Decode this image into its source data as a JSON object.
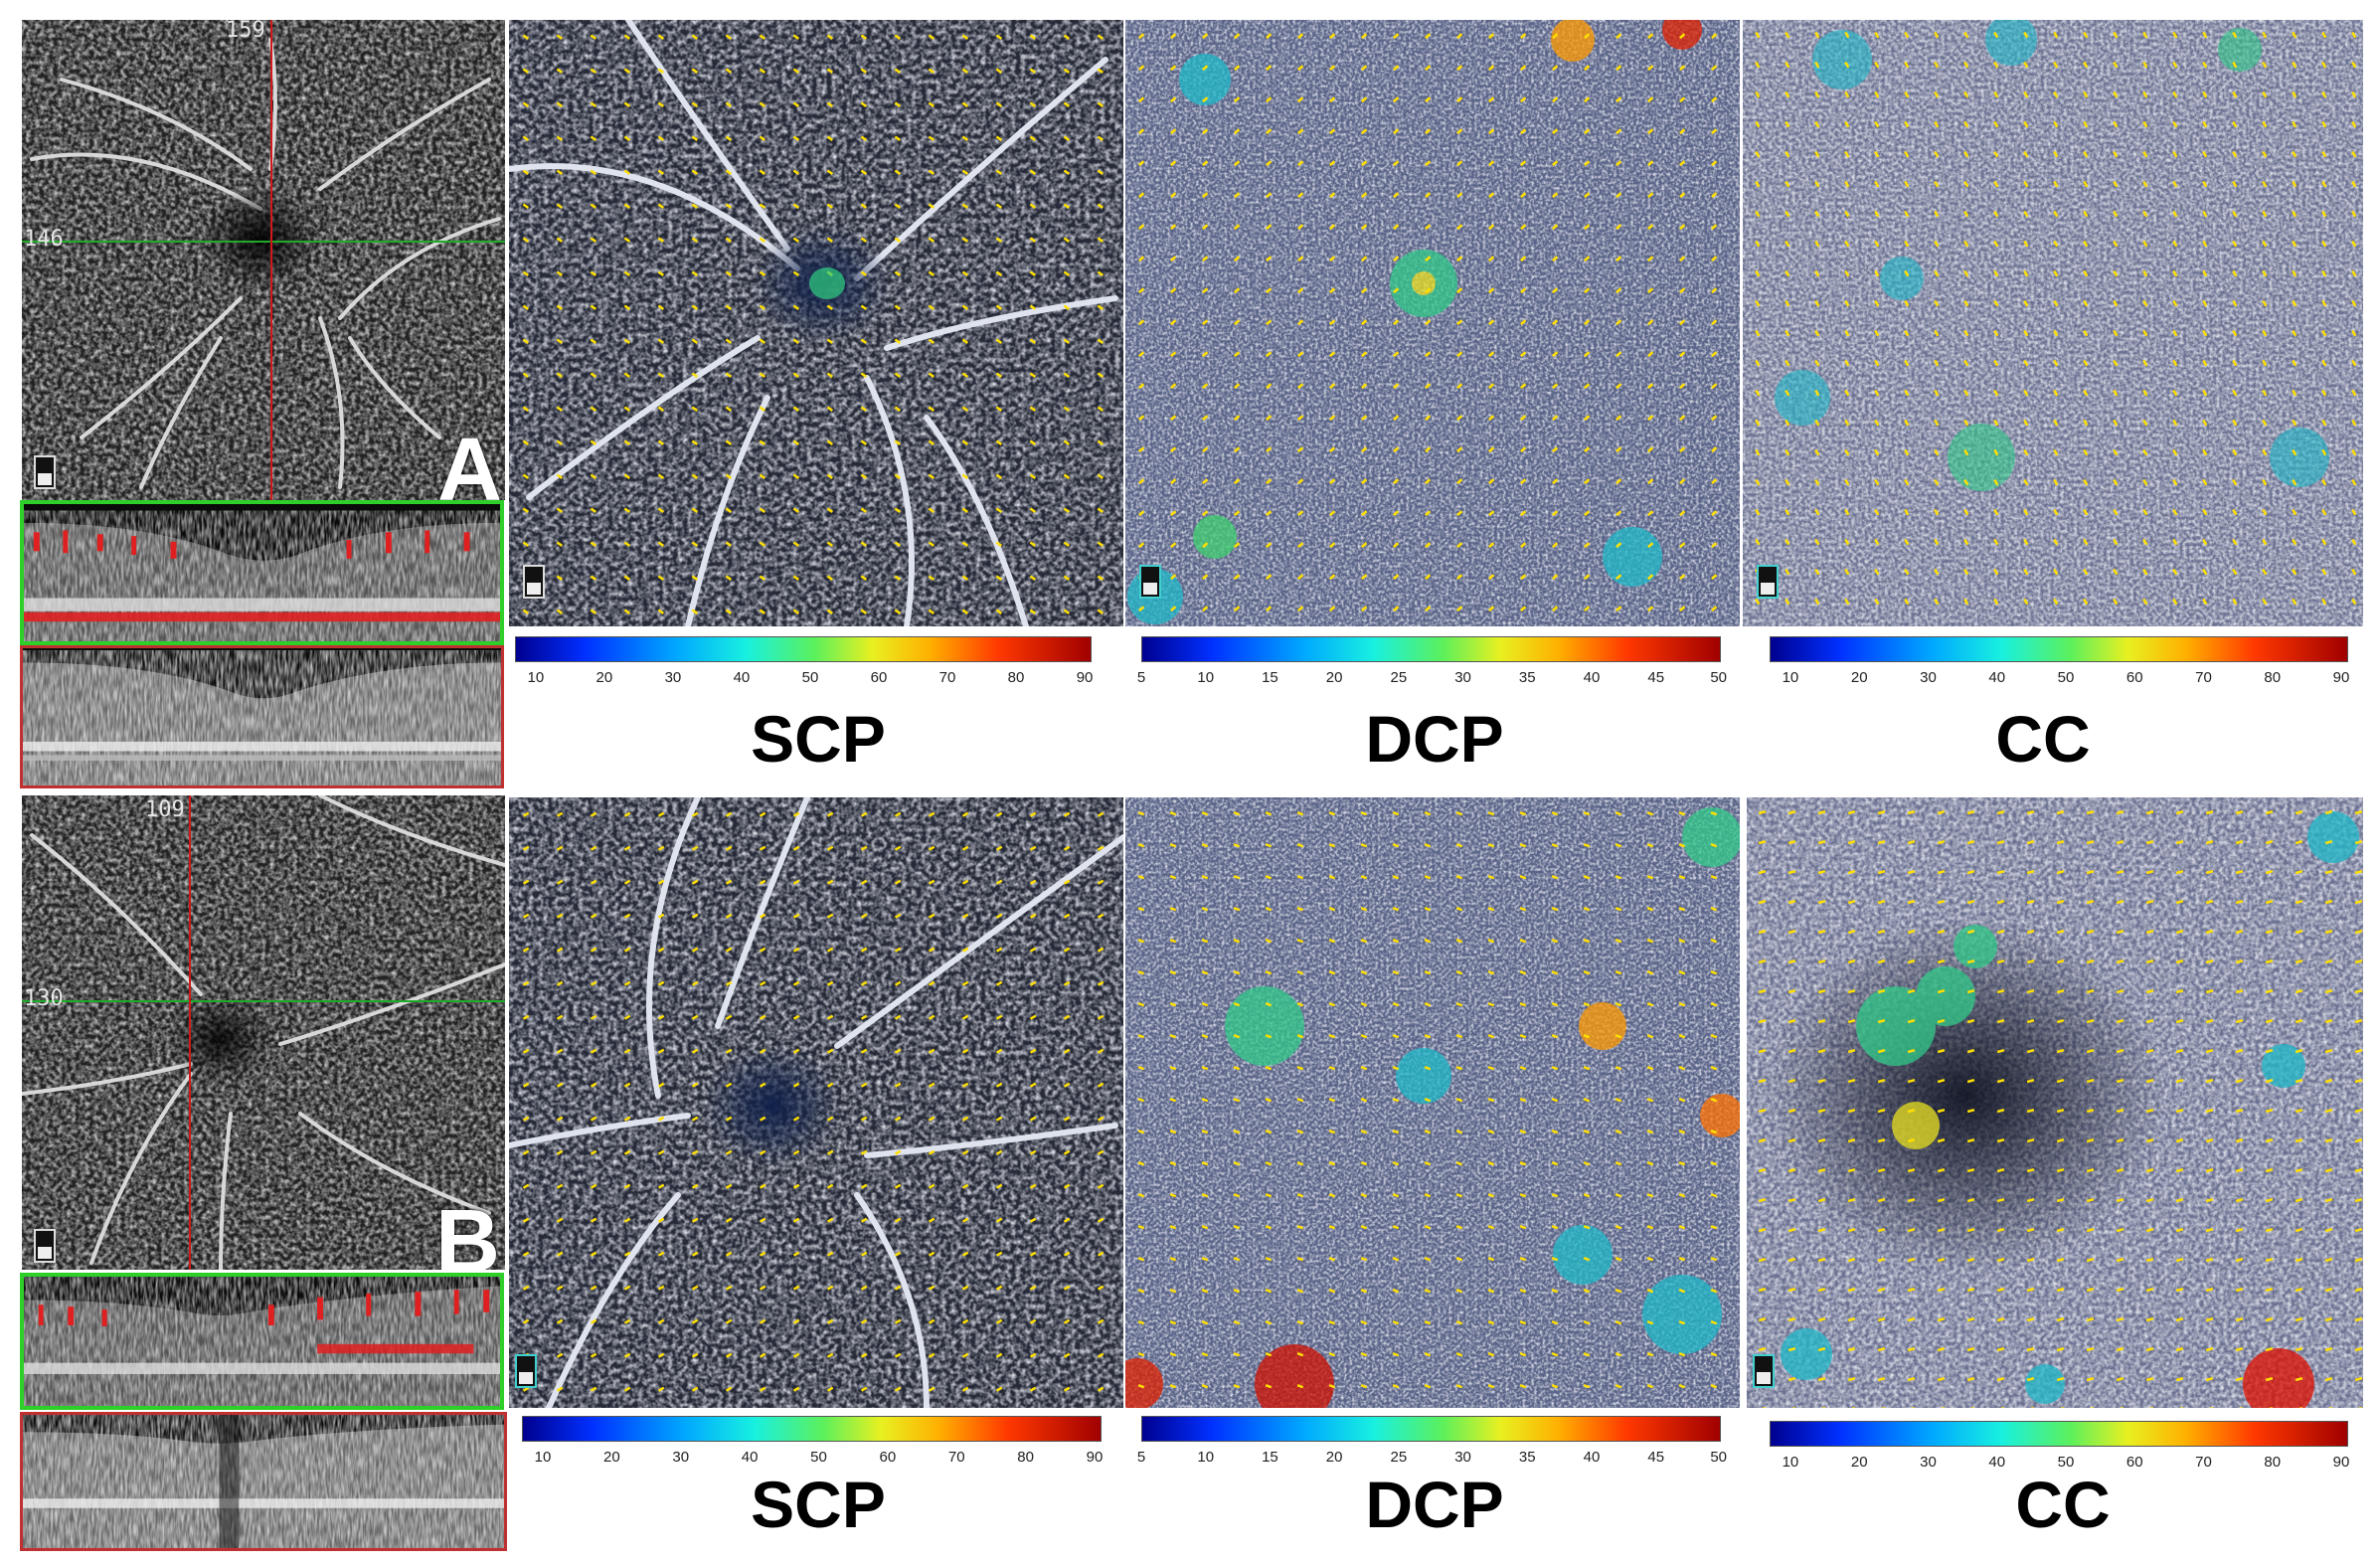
{
  "rows": [
    {
      "letter": "A",
      "en_face_top_number": "159",
      "en_face_left_number": "146",
      "labels": [
        "SCP",
        "DCP",
        "CC"
      ],
      "colorbars": [
        {
          "ticks": [
            "10",
            "20",
            "30",
            "40",
            "50",
            "60",
            "70",
            "80",
            "90"
          ]
        },
        {
          "ticks": [
            "5",
            "10",
            "15",
            "20",
            "25",
            "30",
            "35",
            "40",
            "45",
            "50"
          ]
        },
        {
          "ticks": [
            "10",
            "20",
            "30",
            "40",
            "50",
            "60",
            "70",
            "80",
            "90"
          ]
        }
      ]
    },
    {
      "letter": "B",
      "en_face_top_number": "109",
      "en_face_left_number": "130",
      "labels": [
        "SCP",
        "DCP",
        "CC"
      ],
      "colorbars": [
        {
          "ticks": [
            "10",
            "20",
            "30",
            "40",
            "50",
            "60",
            "70",
            "80",
            "90"
          ]
        },
        {
          "ticks": [
            "5",
            "10",
            "15",
            "20",
            "25",
            "30",
            "35",
            "40",
            "45",
            "50"
          ]
        },
        {
          "ticks": [
            "10",
            "20",
            "30",
            "40",
            "50",
            "60",
            "70",
            "80",
            "90"
          ]
        }
      ]
    }
  ],
  "colors": {
    "horizontal_line": "#1faa2a",
    "vertical_line": "#d01818",
    "bscan_green_border": "#2fcf2a",
    "bscan_red_border": "#c03030",
    "vector_marks": "#ffe000"
  },
  "icons": [
    "scale-bar-icon"
  ]
}
